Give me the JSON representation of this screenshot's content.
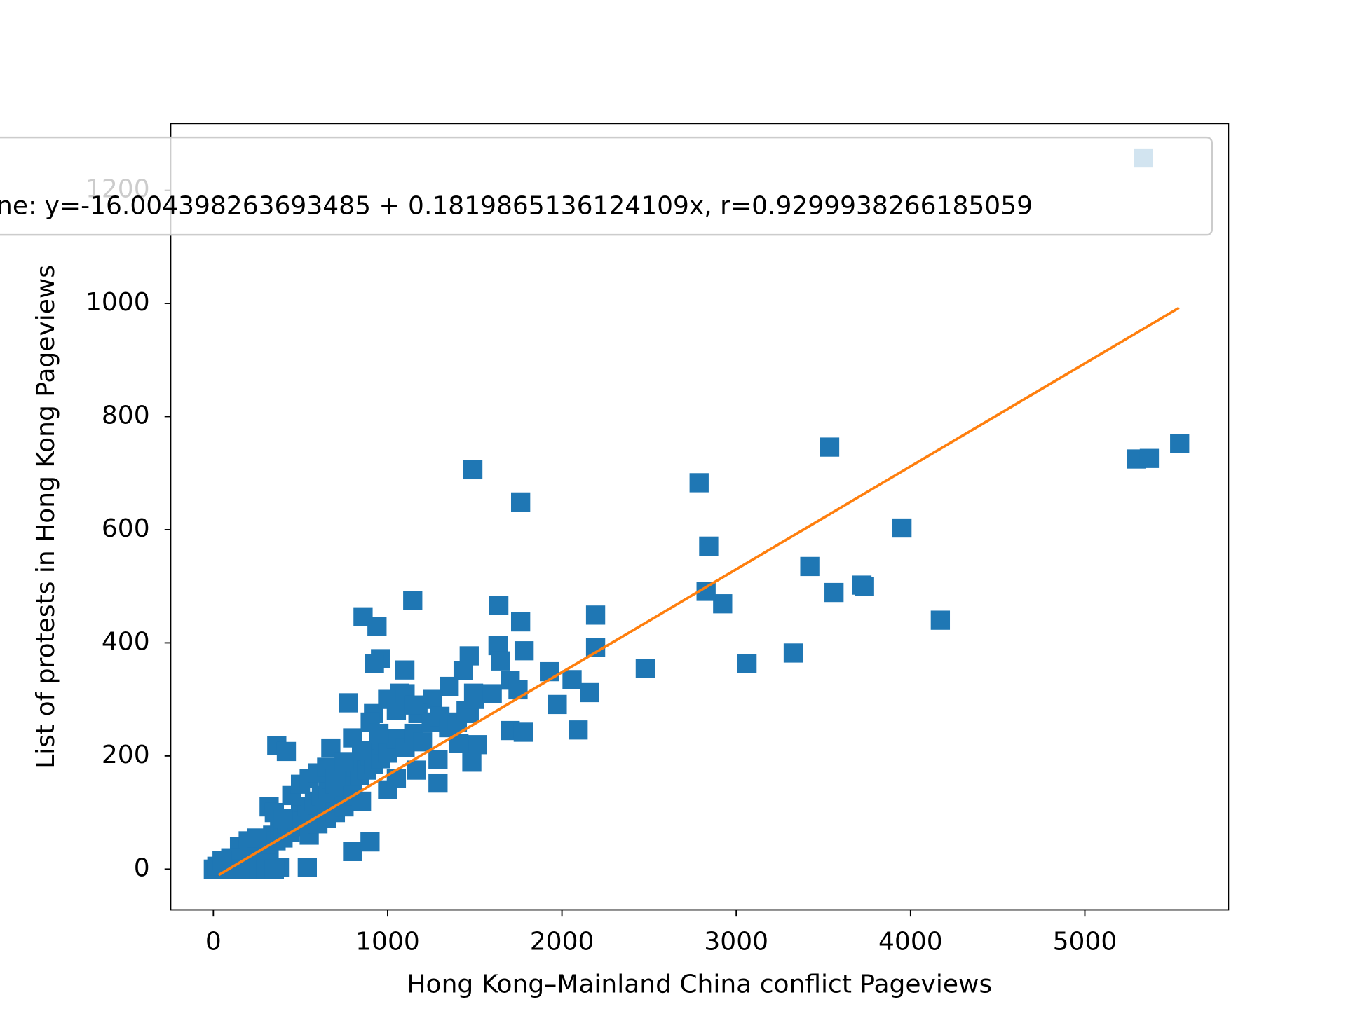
{
  "chart_data": {
    "type": "scatter",
    "xlabel": "Hong Kong–Mainland China conflict Pageviews",
    "ylabel": "List of protests in Hong Kong Pageviews",
    "xlim": [
      -245,
      5824
    ],
    "ylim": [
      -72,
      1318
    ],
    "xticks": [
      0,
      1000,
      2000,
      3000,
      4000,
      5000
    ],
    "yticks": [
      0,
      200,
      400,
      600,
      800,
      1000,
      1200
    ],
    "series": [
      {
        "color": "#1f77b4",
        "marker": "square",
        "x": [
          1489,
          1763,
          2787,
          3536,
          5295,
          5370,
          5544,
          5335,
          3951,
          2842,
          3422,
          3561,
          3721,
          3736,
          4171,
          2922,
          2827,
          3062,
          3327,
          2478,
          2193,
          2193,
          2158,
          2093,
          1973,
          1928,
          2058,
          1763,
          1638,
          1783,
          1633,
          1648,
          1703,
          1748,
          1703,
          1778,
          1144,
          859,
          939,
          959,
          924,
          1099,
          1468,
          1433,
          1493,
          1353,
          1259,
          1468,
          1513,
          1409,
          1483,
          1289,
          1289,
          1164,
          1069,
          1099,
          1174,
          774,
          919,
          364,
          419,
          674,
          799,
          539,
          799,
          899,
          379,
          30,
          50,
          60,
          80,
          100,
          120,
          140,
          160,
          180,
          200,
          220,
          250,
          280,
          300,
          320,
          340,
          360,
          380,
          400,
          420,
          440,
          460,
          480,
          500,
          520,
          540,
          560,
          580,
          600,
          620,
          640,
          660,
          680,
          700,
          720,
          740,
          760,
          780,
          800,
          820,
          840,
          860,
          880,
          900,
          920,
          940,
          960,
          980,
          1000,
          1050,
          1100,
          1150,
          1200,
          1250,
          320,
          350,
          400,
          450,
          500,
          550,
          600,
          650,
          700,
          750,
          850,
          900,
          950,
          1000,
          1050,
          1100,
          1150,
          1300,
          1350,
          1400,
          1450,
          1500,
          1600,
          550,
          600,
          650,
          700,
          750,
          800,
          850,
          1000,
          1050,
          150,
          200,
          250,
          100,
          300,
          250,
          200,
          150,
          100,
          0,
          20,
          50,
          300,
          350
        ],
        "y": [
          706,
          649,
          683,
          746,
          725,
          726,
          752,
          1257,
          603,
          571,
          535,
          489,
          502,
          500,
          440,
          469,
          491,
          363,
          382,
          355,
          449,
          392,
          312,
          246,
          291,
          349,
          335,
          437,
          466,
          386,
          395,
          368,
          334,
          317,
          245,
          242,
          475,
          446,
          429,
          372,
          363,
          352,
          377,
          351,
          311,
          323,
          300,
          275,
          220,
          222,
          189,
          194,
          152,
          175,
          311,
          291,
          275,
          294,
          275,
          218,
          208,
          214,
          232,
          3,
          31,
          48,
          3,
          0,
          5,
          2,
          10,
          3,
          15,
          8,
          20,
          5,
          25,
          12,
          30,
          20,
          45,
          35,
          60,
          50,
          70,
          55,
          80,
          65,
          90,
          75,
          100,
          85,
          110,
          95,
          120,
          105,
          130,
          115,
          140,
          125,
          150,
          135,
          160,
          145,
          170,
          155,
          180,
          165,
          190,
          175,
          200,
          185,
          210,
          195,
          220,
          205,
          230,
          215,
          240,
          225,
          260,
          110,
          100,
          90,
          130,
          150,
          160,
          170,
          180,
          160,
          190,
          210,
          260,
          240,
          300,
          280,
          310,
          290,
          270,
          250,
          260,
          280,
          300,
          310,
          60,
          80,
          90,
          100,
          110,
          130,
          120,
          140,
          160,
          40,
          50,
          55,
          20,
          10,
          0,
          0,
          0,
          0,
          0,
          5,
          15,
          0,
          0
        ]
      },
      {
        "type": "line",
        "name": "ne: y=-16.004398263693485 + 0.1819865136124109x, r=0.9299938266185059",
        "color": "#ff7f0e",
        "x": [
          30,
          5540
        ],
        "y": [
          -10.5,
          992.2
        ]
      }
    ],
    "legend": "upper center"
  }
}
